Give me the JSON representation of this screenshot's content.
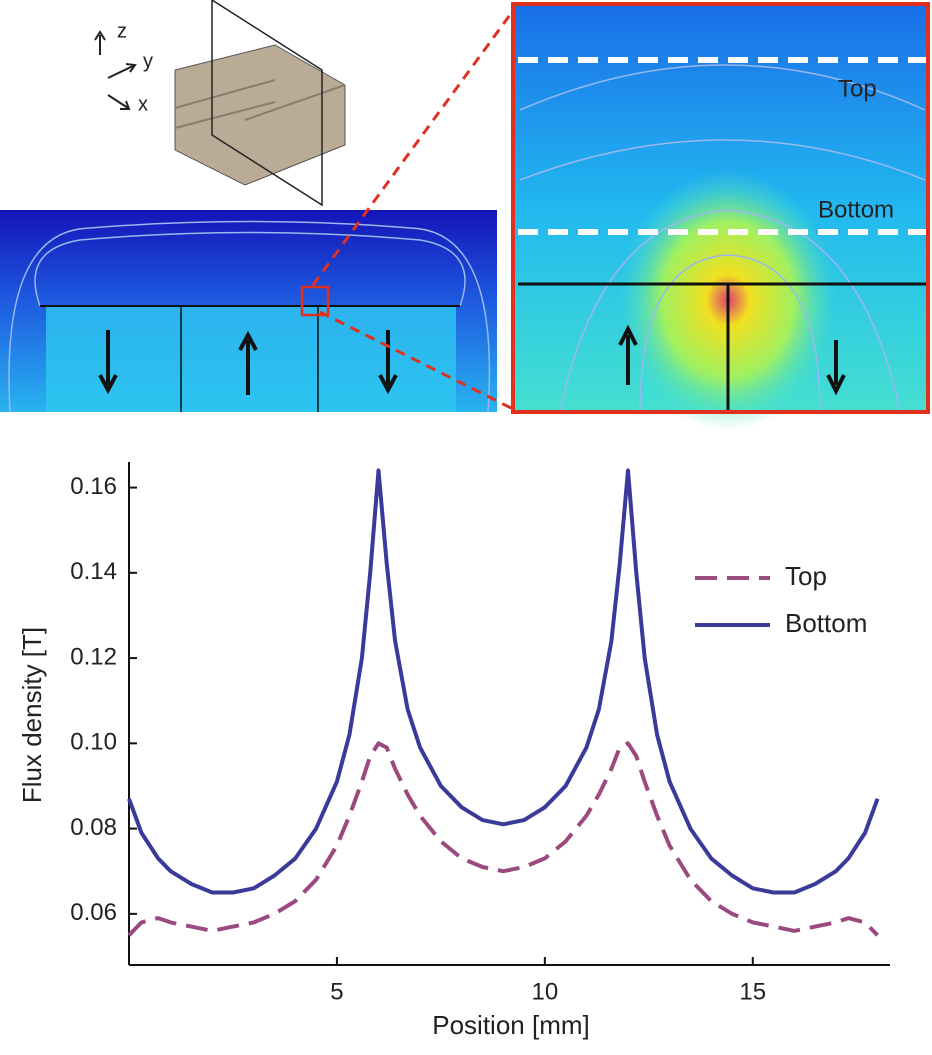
{
  "figure": {
    "axis_letters": [
      "z",
      "y",
      "x"
    ],
    "inset_labels": [
      "Top",
      "Bottom"
    ]
  },
  "chart_data": {
    "type": "line",
    "x_label": "Position [mm]",
    "y_label": "Flux density [T]",
    "x": [
      0,
      0.3,
      0.7,
      1,
      1.5,
      2,
      2.5,
      3,
      3.5,
      4,
      4.5,
      5,
      5.3,
      5.6,
      5.8,
      6,
      6.2,
      6.4,
      6.7,
      7,
      7.5,
      8,
      8.5,
      9,
      9.5,
      10,
      10.5,
      11,
      11.3,
      11.6,
      11.8,
      12,
      12.2,
      12.4,
      12.7,
      13,
      13.5,
      14,
      14.5,
      15,
      15.5,
      16,
      16.5,
      17,
      17.3,
      17.7,
      18
    ],
    "series": [
      {
        "name": "Top",
        "color": "#9a4a7e",
        "dash": true,
        "values": [
          0.055,
          0.058,
          0.059,
          0.058,
          0.057,
          0.056,
          0.057,
          0.058,
          0.06,
          0.063,
          0.068,
          0.076,
          0.083,
          0.091,
          0.097,
          0.1,
          0.099,
          0.094,
          0.088,
          0.083,
          0.077,
          0.073,
          0.071,
          0.07,
          0.071,
          0.073,
          0.077,
          0.083,
          0.088,
          0.094,
          0.099,
          0.1,
          0.097,
          0.091,
          0.083,
          0.076,
          0.068,
          0.063,
          0.06,
          0.058,
          0.057,
          0.056,
          0.057,
          0.058,
          0.059,
          0.058,
          0.055
        ]
      },
      {
        "name": "Bottom",
        "color": "#3a3a9a",
        "dash": false,
        "values": [
          0.087,
          0.079,
          0.073,
          0.07,
          0.067,
          0.065,
          0.065,
          0.066,
          0.069,
          0.073,
          0.08,
          0.091,
          0.102,
          0.12,
          0.14,
          0.164,
          0.142,
          0.124,
          0.108,
          0.099,
          0.09,
          0.085,
          0.082,
          0.081,
          0.082,
          0.085,
          0.09,
          0.099,
          0.108,
          0.124,
          0.142,
          0.164,
          0.14,
          0.12,
          0.102,
          0.091,
          0.08,
          0.073,
          0.069,
          0.066,
          0.065,
          0.065,
          0.067,
          0.07,
          0.073,
          0.079,
          0.087
        ]
      }
    ],
    "xlim": [
      0,
      18.3
    ],
    "xticks": [
      5,
      10,
      15
    ],
    "ylim": [
      0.048,
      0.166
    ],
    "yticks": [
      0.06,
      0.08,
      {
        "value": 0.1,
        "label": "0.10"
      },
      0.12,
      0.14,
      0.16
    ],
    "grid": false,
    "legend": "upper right"
  }
}
